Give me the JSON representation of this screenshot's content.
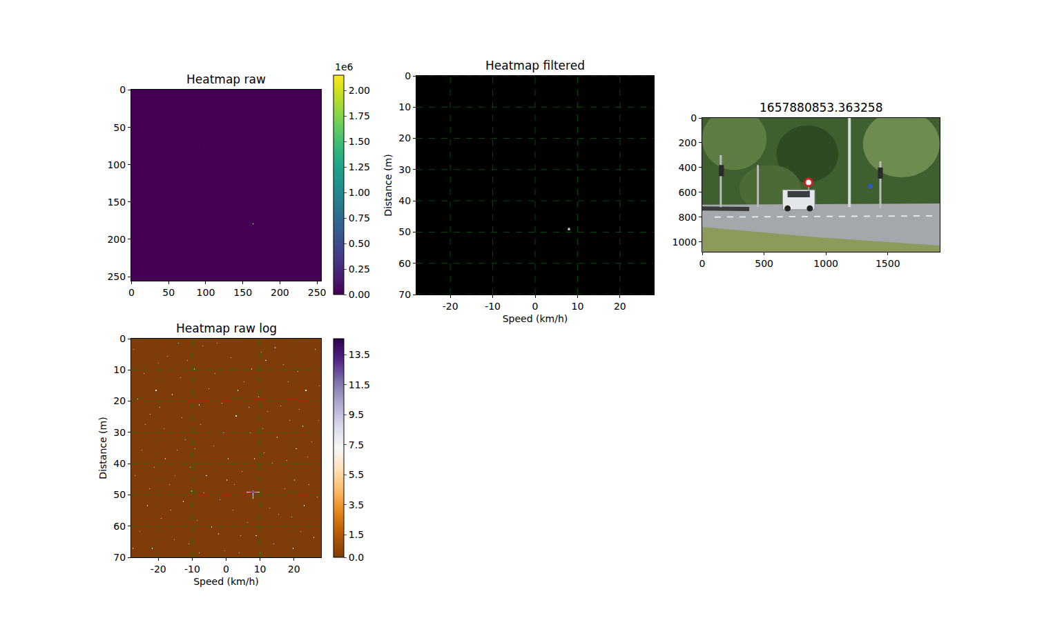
{
  "chart_data": [
    {
      "type": "heatmap",
      "title": "Heatmap raw",
      "xlim": [
        -0.5,
        255.5
      ],
      "xticks": [
        0,
        50,
        100,
        150,
        200,
        250
      ],
      "ylim": [
        255.5,
        -0.5
      ],
      "yticks": [
        0,
        50,
        100,
        150,
        200,
        250
      ],
      "grid": false,
      "color": "viridis",
      "cells": {
        "rows": 256,
        "cols": 256,
        "background": 0,
        "points": [
          [
            164,
            179,
            2150000
          ],
          [
            163,
            179,
            400000
          ],
          [
            165,
            179,
            400000
          ],
          [
            164,
            178,
            250000
          ],
          [
            164,
            180,
            250000
          ],
          [
            91,
            77,
            150000
          ],
          [
            255,
            128,
            100000
          ]
        ]
      },
      "colorbar": {
        "range": [
          0,
          2150000
        ],
        "title": "1e6",
        "ticks": [
          {
            "value": 0,
            "label": "0.00"
          },
          {
            "value": 250000,
            "label": "0.25"
          },
          {
            "value": 500000,
            "label": "0.50"
          },
          {
            "value": 750000,
            "label": "0.75"
          },
          {
            "value": 1000000,
            "label": "1.00"
          },
          {
            "value": 1250000,
            "label": "1.25"
          },
          {
            "value": 1500000,
            "label": "1.50"
          },
          {
            "value": 1750000,
            "label": "1.75"
          },
          {
            "value": 2000000,
            "label": "2.00"
          }
        ]
      }
    },
    {
      "type": "heatmap",
      "title": "Heatmap filtered",
      "x_label": "Speed (km/h)",
      "y_label": "Distance (m)",
      "xlim": [
        -28,
        28
      ],
      "xticks": [
        -20,
        -10,
        0,
        10,
        20
      ],
      "ylim": [
        70,
        0
      ],
      "yticks": [
        0,
        10,
        20,
        30,
        40,
        50,
        60,
        70
      ],
      "grid": true,
      "color": "gray",
      "cells": {
        "rows": 256,
        "cols": 256,
        "background": 0,
        "range": [
          0,
          1
        ],
        "points": [
          [
            164,
            179,
            1
          ],
          [
            163,
            179,
            0.6
          ],
          [
            165,
            179,
            0.6
          ],
          [
            164,
            178,
            0.6
          ],
          [
            164,
            180,
            0.6
          ],
          [
            163,
            178,
            0.3
          ],
          [
            165,
            178,
            0.3
          ],
          [
            163,
            180,
            0.3
          ],
          [
            165,
            180,
            0.3
          ]
        ]
      }
    },
    {
      "type": "image",
      "title": "1657880853.363258",
      "xlim": [
        0,
        1920
      ],
      "xticks": [
        0,
        500,
        1000,
        1500
      ],
      "ylim": [
        1080,
        0
      ],
      "yticks": [
        0,
        200,
        400,
        600,
        800,
        1000
      ],
      "grid": false
    },
    {
      "type": "heatmap",
      "title": "Heatmap raw log",
      "x_label": "Speed (km/h)",
      "y_label": "Distance (m)",
      "xlim": [
        -28,
        28
      ],
      "xticks": [
        -20,
        -10,
        0,
        10,
        20
      ],
      "ylim": [
        70,
        0
      ],
      "yticks": [
        0,
        10,
        20,
        30,
        40,
        50,
        60,
        70
      ],
      "grid": true,
      "color": "PuOr_r",
      "cells": {
        "rows": 256,
        "cols": 256,
        "background": 0,
        "points": [
          [
            164,
            179,
            14.5
          ],
          [
            155,
            179,
            8
          ],
          [
            156,
            179,
            9
          ],
          [
            157,
            179,
            8
          ],
          [
            158,
            179,
            9
          ],
          [
            159,
            179,
            10
          ],
          [
            160,
            179,
            10
          ],
          [
            161,
            179,
            11
          ],
          [
            162,
            179,
            11
          ],
          [
            163,
            179,
            12
          ],
          [
            165,
            179,
            12
          ],
          [
            166,
            179,
            11
          ],
          [
            167,
            179,
            10
          ],
          [
            168,
            179,
            10
          ],
          [
            169,
            179,
            9
          ],
          [
            170,
            179,
            9
          ],
          [
            171,
            179,
            8
          ],
          [
            172,
            179,
            8
          ],
          [
            164,
            178,
            10
          ],
          [
            164,
            180,
            10
          ],
          [
            164,
            181,
            8
          ],
          [
            164,
            182,
            7
          ],
          [
            164,
            183,
            8
          ],
          [
            164,
            184,
            7
          ],
          [
            164,
            185,
            7
          ],
          [
            164,
            186,
            6
          ],
          [
            91,
            77,
            9
          ],
          [
            3,
            12,
            6
          ],
          [
            17,
            40,
            5
          ],
          [
            25,
            88,
            7
          ],
          [
            31,
            150,
            6
          ],
          [
            40,
            210,
            5
          ],
          [
            48,
            20,
            6
          ],
          [
            55,
            65,
            7
          ],
          [
            61,
            130,
            5
          ],
          [
            70,
            190,
            6
          ],
          [
            77,
            240,
            7
          ],
          [
            85,
            35,
            5
          ],
          [
            93,
            100,
            6
          ],
          [
            101,
            160,
            7
          ],
          [
            108,
            220,
            5
          ],
          [
            115,
            5,
            6
          ],
          [
            122,
            75,
            7
          ],
          [
            130,
            140,
            5
          ],
          [
            137,
            200,
            6
          ],
          [
            145,
            250,
            7
          ],
          [
            152,
            50,
            5
          ],
          [
            160,
            110,
            6
          ],
          [
            168,
            230,
            7
          ],
          [
            175,
            15,
            5
          ],
          [
            183,
            85,
            6
          ],
          [
            190,
            145,
            7
          ],
          [
            198,
            205,
            5
          ],
          [
            205,
            30,
            6
          ],
          [
            213,
            95,
            7
          ],
          [
            220,
            165,
            5
          ],
          [
            228,
            225,
            6
          ],
          [
            235,
            60,
            7
          ],
          [
            243,
            120,
            5
          ],
          [
            250,
            185,
            6
          ],
          [
            8,
            70,
            7
          ],
          [
            14,
            130,
            5
          ],
          [
            21,
            195,
            6
          ],
          [
            28,
            245,
            7
          ],
          [
            36,
            28,
            5
          ],
          [
            44,
            105,
            6
          ],
          [
            51,
            170,
            7
          ],
          [
            58,
            235,
            5
          ],
          [
            66,
            45,
            6
          ],
          [
            73,
            118,
            7
          ],
          [
            81,
            178,
            5
          ],
          [
            88,
            212,
            6
          ],
          [
            96,
            8,
            7
          ],
          [
            104,
            58,
            5
          ],
          [
            111,
            125,
            6
          ],
          [
            119,
            188,
            7
          ],
          [
            126,
            248,
            5
          ],
          [
            134,
            22,
            6
          ],
          [
            141,
            90,
            7
          ],
          [
            149,
            155,
            5
          ],
          [
            156,
            215,
            6
          ],
          [
            171,
            68,
            7
          ],
          [
            179,
            133,
            5
          ],
          [
            186,
            198,
            6
          ],
          [
            194,
            10,
            7
          ],
          [
            201,
            78,
            5
          ],
          [
            209,
            142,
            6
          ],
          [
            216,
            208,
            7
          ],
          [
            224,
            38,
            5
          ],
          [
            231,
            102,
            6
          ],
          [
            239,
            170,
            7
          ],
          [
            246,
            232,
            5
          ],
          [
            253,
            55,
            6
          ],
          [
            5,
            160,
            7
          ],
          [
            11,
            225,
            5
          ],
          [
            19,
            100,
            6
          ],
          [
            33,
            60,
            7
          ],
          [
            46,
            140,
            5
          ],
          [
            53,
            200,
            6
          ],
          [
            63,
            5,
            7
          ],
          [
            68,
            92,
            5
          ],
          [
            79,
            150,
            6
          ],
          [
            91,
            250,
            7
          ],
          [
            98,
            180,
            5
          ],
          [
            113,
            40,
            6
          ],
          [
            124,
            110,
            7
          ],
          [
            139,
            170,
            5
          ],
          [
            147,
            230,
            6
          ],
          [
            158,
            80,
            7
          ],
          [
            166,
            140,
            5
          ],
          [
            173,
            250,
            6
          ],
          [
            181,
            25,
            7
          ],
          [
            196,
            115,
            5
          ],
          [
            207,
            175,
            6
          ],
          [
            218,
            245,
            7
          ],
          [
            226,
            82,
            5
          ],
          [
            237,
            138,
            6
          ],
          [
            248,
            12,
            7
          ],
          [
            2,
            245,
            5
          ],
          [
            24,
            175,
            6
          ],
          [
            38,
            80,
            7
          ],
          [
            59,
            160,
            5
          ],
          [
            75,
            25,
            6
          ],
          [
            86,
            128,
            7
          ],
          [
            117,
            228,
            5
          ],
          [
            128,
            165,
            6
          ],
          [
            143,
            60,
            7
          ],
          [
            162,
            35,
            5
          ],
          [
            177,
            105,
            6
          ],
          [
            192,
            240,
            7
          ],
          [
            211,
            50,
            5
          ],
          [
            222,
            128,
            6
          ],
          [
            233,
            195,
            7
          ],
          [
            252,
            95,
            5
          ]
        ]
      },
      "colorbar": {
        "range": [
          0,
          14.56
        ],
        "ticks": [
          {
            "value": 0,
            "label": "0.0"
          },
          1.5,
          3.5,
          5.5,
          7.5,
          9.5,
          11.5,
          13.5
        ]
      }
    }
  ]
}
